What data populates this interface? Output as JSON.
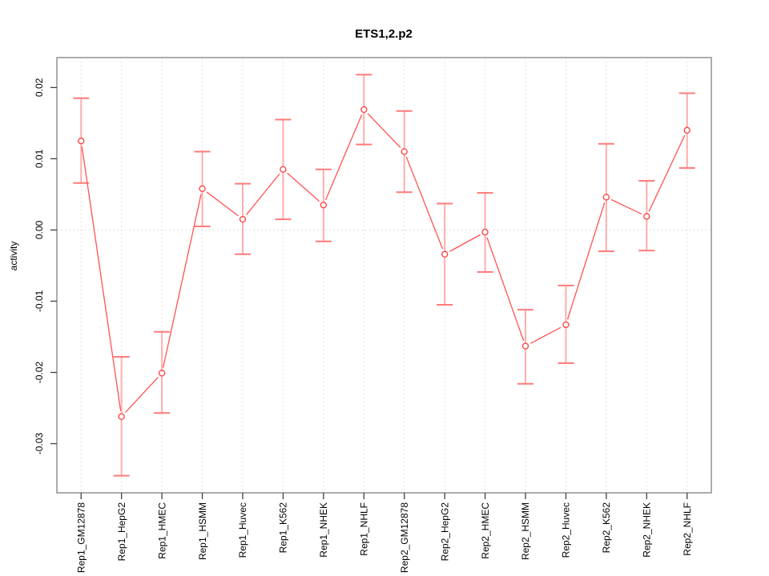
{
  "chart_data": {
    "type": "line",
    "title": "ETS1,2.p2",
    "xlabel": "",
    "ylabel": "activity",
    "categories": [
      "Rep1_GM12878",
      "Rep1_HepG2",
      "Rep1_HMEC",
      "Rep1_HSMM",
      "Rep1_Huvec",
      "Rep1_K562",
      "Rep1_NHEK",
      "Rep1_NHLF",
      "Rep2_GM12878",
      "Rep2_HepG2",
      "Rep2_HMEC",
      "Rep2_HSMM",
      "Rep2_Huvec",
      "Rep2_K562",
      "Rep2_NHEK",
      "Rep2_NHLF"
    ],
    "series": [
      {
        "name": "activity",
        "marker": "open-circle",
        "values": [
          0.0125,
          -0.0262,
          -0.0201,
          0.0058,
          0.0015,
          0.0085,
          0.0035,
          0.0169,
          0.011,
          -0.0034,
          -0.0003,
          -0.0163,
          -0.0133,
          0.0046,
          0.0019,
          0.014
        ],
        "error_lower": [
          0.0066,
          -0.0345,
          -0.0257,
          0.0005,
          -0.0034,
          0.0015,
          -0.0016,
          0.012,
          0.0053,
          -0.0105,
          -0.0059,
          -0.0216,
          -0.0187,
          -0.003,
          -0.0029,
          0.0087
        ],
        "error_upper": [
          0.0185,
          -0.0178,
          -0.0143,
          0.011,
          0.0065,
          0.0155,
          0.0085,
          0.0218,
          0.0167,
          0.0037,
          0.0052,
          -0.0112,
          -0.0078,
          0.0121,
          0.0069,
          0.0192
        ]
      }
    ],
    "ylim": [
      -0.0369,
      0.0242
    ],
    "yticks": [
      0.02,
      0.01,
      0,
      -0.01,
      -0.02,
      -0.03
    ],
    "ytick_labels": [
      "0.02",
      "0.01",
      "0.00",
      "-0.01",
      "-0.02",
      "-0.03"
    ],
    "grid": {
      "vertical_dotted_at_each_category": true,
      "horizontal_dotted_at_zero": true,
      "style": "dotted"
    },
    "legend_position": "none",
    "tick_label_rotation_degrees": 90,
    "colors": {
      "line": "#ff5252",
      "point": "#ff3d3d",
      "point_fill": "#ffffff",
      "error_bar": "#ffadad",
      "error_cap": "#ff7a7a",
      "grid": "#d6d6d6",
      "box": "#919191",
      "tick": "#404040",
      "text": "#000000",
      "background": "#ffffff"
    }
  }
}
